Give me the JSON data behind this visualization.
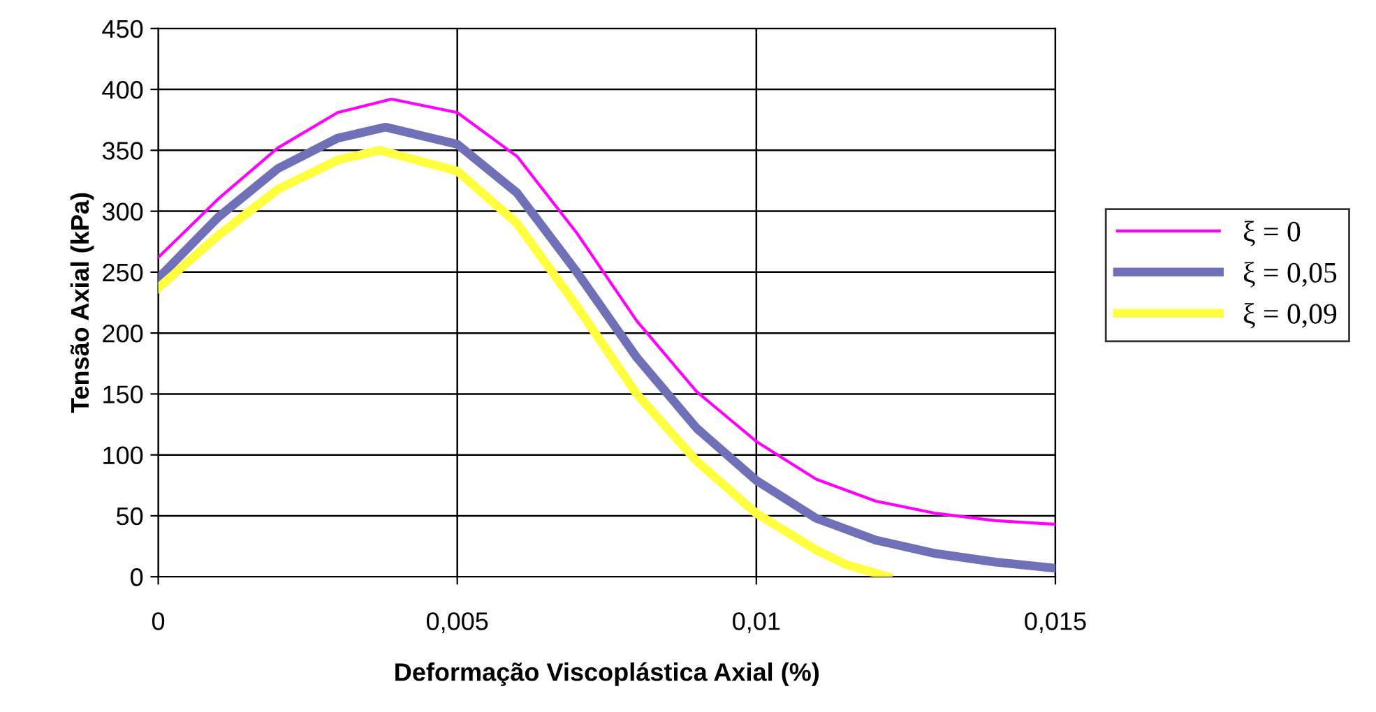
{
  "chart_data": {
    "type": "line",
    "xlabel": "Deformação Viscoplástica Axial (%)",
    "ylabel": "Tensão Axial (kPa)",
    "xlim": [
      0,
      0.015
    ],
    "xticks": [
      0,
      {
        "value": 0.005,
        "label": "0,005"
      },
      {
        "value": 0.01,
        "label": "0,01"
      },
      {
        "value": 0.015,
        "label": "0,015"
      }
    ],
    "ylim": [
      0,
      450
    ],
    "yticks": [
      0,
      50,
      100,
      150,
      200,
      250,
      300,
      350,
      400,
      450
    ],
    "grid": true,
    "legend": "right",
    "marker": "none",
    "line_style": "solid",
    "series": [
      {
        "name": "ξ = 0",
        "color": "#ff00ff",
        "x": [
          0,
          0.001,
          0.002,
          0.003,
          0.0039,
          0.005,
          0.006,
          0.007,
          0.008,
          0.009,
          0.01,
          0.011,
          0.012,
          0.013,
          0.014,
          0.015
        ],
        "values": [
          262,
          310,
          352,
          381,
          392,
          381,
          345,
          282,
          210,
          152,
          111,
          80,
          62,
          52,
          46,
          43
        ]
      },
      {
        "name": "ξ = 0,05",
        "color": "#7070b8",
        "x": [
          0,
          0.001,
          0.002,
          0.003,
          0.0038,
          0.005,
          0.006,
          0.007,
          0.008,
          0.009,
          0.01,
          0.011,
          0.012,
          0.013,
          0.014,
          0.015
        ],
        "values": [
          245,
          295,
          335,
          360,
          369,
          355,
          315,
          250,
          180,
          122,
          79,
          48,
          30,
          19,
          12,
          7
        ]
      },
      {
        "name": "ξ = 0,09",
        "color": "#ffff40",
        "x": [
          0,
          0.001,
          0.002,
          0.003,
          0.0037,
          0.005,
          0.006,
          0.007,
          0.008,
          0.009,
          0.01,
          0.011,
          0.0115,
          0.0122
        ],
        "values": [
          237,
          280,
          318,
          342,
          350,
          333,
          290,
          222,
          150,
          95,
          52,
          22,
          10,
          0
        ]
      }
    ]
  }
}
